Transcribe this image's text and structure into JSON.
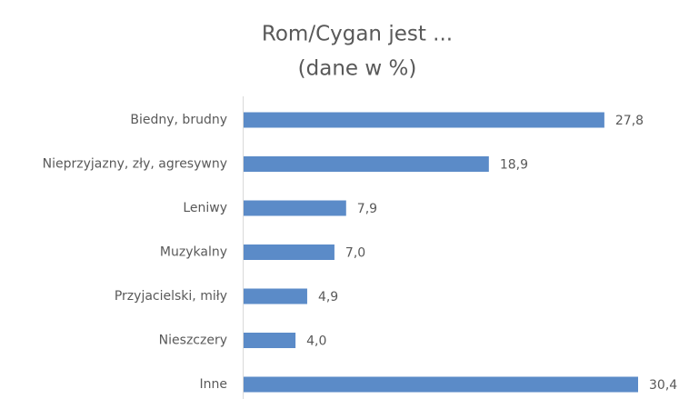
{
  "chart_data": {
    "type": "bar",
    "orientation": "horizontal",
    "title": "Rom/Cygan jest ...",
    "subtitle": "(dane w %)",
    "categories": [
      "Biedny, brudny",
      "Nieprzyjazny, zły, agresywny",
      "Leniwy",
      "Muzykalny",
      "Przyjacielski, miły",
      "Nieszczery",
      "Inne"
    ],
    "values": [
      27.8,
      18.9,
      7.9,
      7.0,
      4.9,
      4.0,
      30.4
    ],
    "value_labels": [
      "27,8",
      "18,9",
      "7,9",
      "7,0",
      "4,9",
      "4,0",
      "30,4"
    ],
    "color": "#5b8bc8"
  }
}
